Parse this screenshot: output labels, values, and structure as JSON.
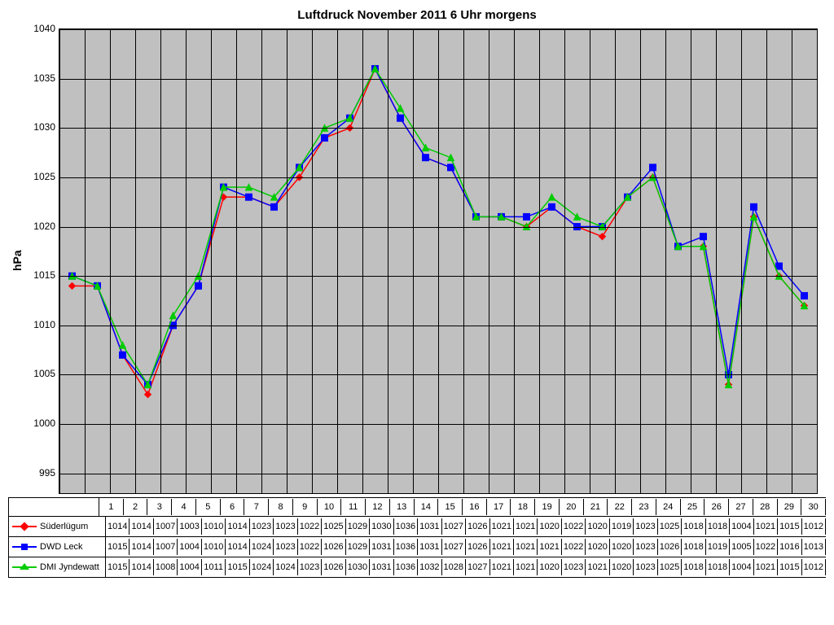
{
  "chart": {
    "title": "Luftdruck November 2011 6 Uhr morgens",
    "ylabel": "hPa",
    "ymin": 993,
    "ymax": 1040,
    "type": "line",
    "background_color": "#c0c0c0",
    "grid_color": "#000000",
    "yticks": [
      1040,
      1035,
      1030,
      1025,
      1020,
      1015,
      1010,
      1005,
      1000,
      995
    ],
    "x_categories": [
      "1",
      "2",
      "3",
      "4",
      "5",
      "6",
      "7",
      "8",
      "9",
      "10",
      "11",
      "12",
      "13",
      "14",
      "15",
      "16",
      "17",
      "18",
      "19",
      "20",
      "21",
      "22",
      "23",
      "24",
      "25",
      "26",
      "27",
      "28",
      "29",
      "30"
    ],
    "series": [
      {
        "name": "Süderlügum",
        "color": "#ff0000",
        "marker": "diamond",
        "line_width": 1.5,
        "values": [
          1014,
          1014,
          1007,
          1003,
          1010,
          1014,
          1023,
          1023,
          1022,
          1025,
          1029,
          1030,
          1036,
          1031,
          1027,
          1026,
          1021,
          1021,
          1020,
          1022,
          1020,
          1019,
          1023,
          1025,
          1018,
          1018,
          1004,
          1021,
          1015,
          1012
        ]
      },
      {
        "name": "DWD Leck",
        "color": "#0000ff",
        "marker": "square",
        "line_width": 1.5,
        "values": [
          1015,
          1014,
          1007,
          1004,
          1010,
          1014,
          1024,
          1023,
          1022,
          1026,
          1029,
          1031,
          1036,
          1031,
          1027,
          1026,
          1021,
          1021,
          1021,
          1022,
          1020,
          1020,
          1023,
          1026,
          1018,
          1019,
          1005,
          1022,
          1016,
          1013
        ]
      },
      {
        "name": "DMI Jyndewatt",
        "color": "#00cc00",
        "marker": "triangle",
        "line_width": 1.5,
        "values": [
          1015,
          1014,
          1008,
          1004,
          1011,
          1015,
          1024,
          1024,
          1023,
          1026,
          1030,
          1031,
          1036,
          1032,
          1028,
          1027,
          1021,
          1021,
          1020,
          1023,
          1021,
          1020,
          1023,
          1025,
          1018,
          1018,
          1004,
          1021,
          1015,
          1012
        ]
      }
    ]
  }
}
